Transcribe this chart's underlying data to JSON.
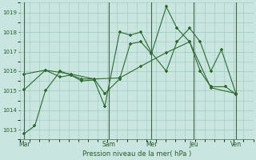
{
  "bg_color": "#c8e6df",
  "grid_color": "#a0c8c0",
  "line_color": "#2d6b2d",
  "xlabel": "Pression niveau de la mer( hPa )",
  "ylim": [
    1012.5,
    1019.5
  ],
  "yticks": [
    1013,
    1014,
    1015,
    1016,
    1017,
    1018,
    1019
  ],
  "day_labels": [
    "Mar",
    "Sam",
    "Mer",
    "Jeu",
    "Ven"
  ],
  "day_positions": [
    0,
    40,
    60,
    80,
    100
  ],
  "xlim": [
    -2,
    108
  ],
  "vlines": [
    0,
    40,
    60,
    80,
    100
  ],
  "line1_x": [
    0,
    5,
    10,
    17,
    22,
    27,
    33,
    38,
    45,
    50,
    55,
    60,
    67,
    72,
    78,
    83,
    88,
    93,
    100
  ],
  "line1_y": [
    1012.8,
    1013.2,
    1015.0,
    1016.0,
    1015.8,
    1015.5,
    1015.55,
    1014.2,
    1018.0,
    1017.85,
    1018.0,
    1016.95,
    1016.0,
    1017.5,
    1018.2,
    1017.5,
    1016.0,
    1017.1,
    1014.8
  ],
  "line2_x": [
    0,
    10,
    17,
    22,
    27,
    33,
    38,
    45,
    50,
    55,
    60,
    67,
    72,
    78,
    83,
    88,
    95,
    100
  ],
  "line2_y": [
    1015.05,
    1016.05,
    1015.7,
    1015.8,
    1015.6,
    1015.6,
    1014.85,
    1015.6,
    1017.4,
    1017.5,
    1016.9,
    1019.3,
    1018.2,
    1017.5,
    1016.0,
    1015.2,
    1015.2,
    1014.8
  ],
  "line3_x": [
    0,
    10,
    22,
    33,
    45,
    55,
    67,
    78,
    88,
    100
  ],
  "line3_y": [
    1015.85,
    1016.05,
    1015.85,
    1015.6,
    1015.65,
    1016.25,
    1016.95,
    1017.5,
    1015.15,
    1014.85
  ]
}
